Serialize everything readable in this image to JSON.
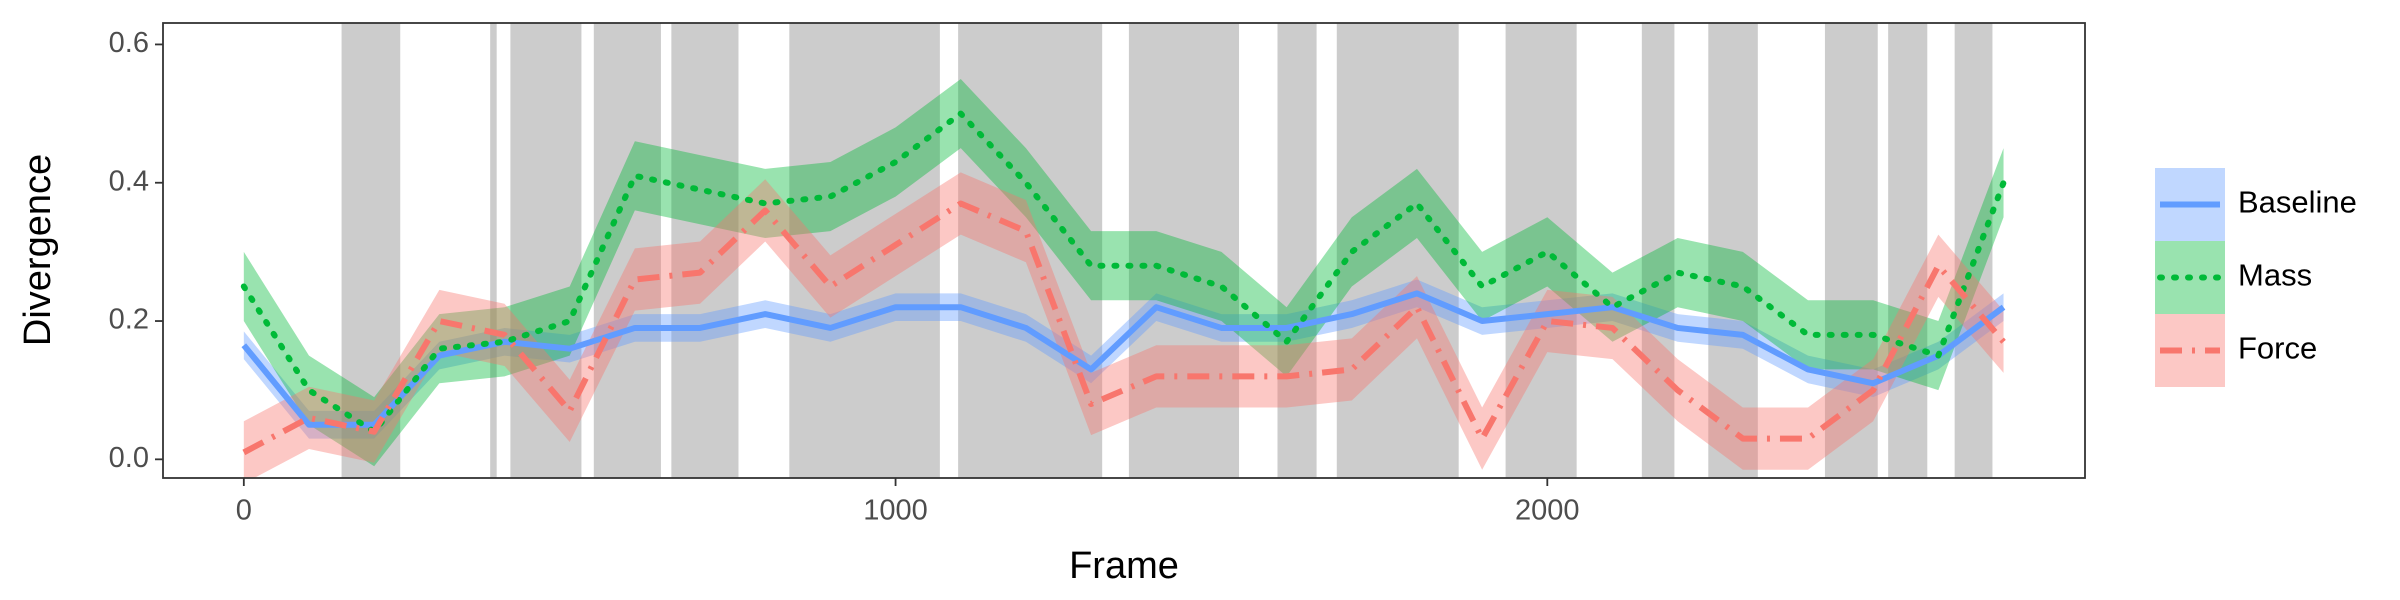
{
  "chart_data": {
    "type": "line",
    "x_label": "Frame",
    "y_label": "Divergence",
    "xlim": [
      -124,
      2825
    ],
    "ylim": [
      -0.027,
      0.631
    ],
    "xticks": [
      0,
      1000,
      2000
    ],
    "yticks": [
      {
        "value": 0,
        "label": "0.0"
      },
      {
        "value": 0.2,
        "label": "0.2"
      },
      {
        "value": 0.4,
        "label": "0.4"
      },
      {
        "value": 0.6,
        "label": "0.6"
      }
    ],
    "grid": false,
    "legend_position": "right",
    "shaded_color": "#cccccc",
    "shaded_regions": [
      [
        150,
        240
      ],
      [
        378,
        388
      ],
      [
        409,
        518
      ],
      [
        537,
        640
      ],
      [
        656,
        759
      ],
      [
        837,
        1068
      ],
      [
        1096,
        1317
      ],
      [
        1358,
        1527
      ],
      [
        1586,
        1646
      ],
      [
        1677,
        1864
      ],
      [
        1936,
        2045
      ],
      [
        2145,
        2195
      ],
      [
        2247,
        2323
      ],
      [
        2426,
        2507
      ],
      [
        2523,
        2583
      ],
      [
        2625,
        2683
      ]
    ],
    "x": [
      0,
      100,
      200,
      300,
      400,
      500,
      600,
      700,
      800,
      900,
      1000,
      1100,
      1200,
      1300,
      1400,
      1500,
      1600,
      1700,
      1800,
      1900,
      2000,
      2100,
      2200,
      2300,
      2400,
      2500,
      2600,
      2700
    ],
    "series": [
      {
        "name": "Baseline",
        "color": "#619CFF",
        "linestyle": "solid",
        "values": [
          0.165,
          0.05,
          0.05,
          0.15,
          0.17,
          0.16,
          0.19,
          0.19,
          0.21,
          0.19,
          0.22,
          0.22,
          0.19,
          0.13,
          0.22,
          0.19,
          0.19,
          0.21,
          0.24,
          0.2,
          0.21,
          0.22,
          0.19,
          0.18,
          0.13,
          0.11,
          0.15,
          0.22
        ],
        "lower": [
          0.145,
          0.03,
          0.03,
          0.13,
          0.15,
          0.14,
          0.17,
          0.17,
          0.19,
          0.17,
          0.2,
          0.2,
          0.17,
          0.11,
          0.2,
          0.17,
          0.17,
          0.19,
          0.22,
          0.18,
          0.19,
          0.2,
          0.17,
          0.16,
          0.11,
          0.09,
          0.13,
          0.2
        ],
        "upper": [
          0.185,
          0.07,
          0.07,
          0.17,
          0.19,
          0.18,
          0.21,
          0.21,
          0.23,
          0.21,
          0.24,
          0.24,
          0.21,
          0.15,
          0.24,
          0.21,
          0.21,
          0.23,
          0.26,
          0.22,
          0.23,
          0.24,
          0.21,
          0.2,
          0.15,
          0.13,
          0.17,
          0.24
        ]
      },
      {
        "name": "Mass",
        "color": "#00BA38",
        "linestyle": "dotted",
        "values": [
          0.25,
          0.1,
          0.04,
          0.16,
          0.17,
          0.2,
          0.41,
          0.39,
          0.37,
          0.38,
          0.43,
          0.5,
          0.4,
          0.28,
          0.28,
          0.25,
          0.17,
          0.3,
          0.37,
          0.25,
          0.3,
          0.22,
          0.27,
          0.25,
          0.18,
          0.18,
          0.15,
          0.4
        ],
        "lower": [
          0.2,
          0.05,
          -0.01,
          0.11,
          0.12,
          0.15,
          0.36,
          0.34,
          0.32,
          0.33,
          0.38,
          0.45,
          0.35,
          0.23,
          0.23,
          0.2,
          0.12,
          0.25,
          0.32,
          0.2,
          0.25,
          0.17,
          0.22,
          0.2,
          0.13,
          0.13,
          0.1,
          0.35
        ],
        "upper": [
          0.3,
          0.15,
          0.09,
          0.21,
          0.22,
          0.25,
          0.46,
          0.44,
          0.42,
          0.43,
          0.48,
          0.55,
          0.45,
          0.33,
          0.33,
          0.3,
          0.22,
          0.35,
          0.42,
          0.3,
          0.35,
          0.27,
          0.32,
          0.3,
          0.23,
          0.23,
          0.2,
          0.45
        ]
      },
      {
        "name": "Force",
        "color": "#F8766D",
        "linestyle": "dashdot",
        "values": [
          0.01,
          0.06,
          0.04,
          0.2,
          0.18,
          0.07,
          0.26,
          0.27,
          0.36,
          0.25,
          0.31,
          0.37,
          0.33,
          0.08,
          0.12,
          0.12,
          0.12,
          0.13,
          0.22,
          0.03,
          0.2,
          0.19,
          0.1,
          0.03,
          0.03,
          0.1,
          0.28,
          0.17
        ],
        "lower": [
          -0.035,
          0.015,
          -0.005,
          0.155,
          0.135,
          0.025,
          0.215,
          0.225,
          0.315,
          0.205,
          0.265,
          0.325,
          0.285,
          0.035,
          0.075,
          0.075,
          0.075,
          0.085,
          0.175,
          -0.015,
          0.155,
          0.145,
          0.055,
          -0.015,
          -0.015,
          0.055,
          0.235,
          0.125
        ],
        "upper": [
          0.055,
          0.105,
          0.085,
          0.245,
          0.225,
          0.115,
          0.305,
          0.315,
          0.405,
          0.295,
          0.355,
          0.415,
          0.375,
          0.125,
          0.165,
          0.165,
          0.165,
          0.175,
          0.265,
          0.075,
          0.245,
          0.235,
          0.145,
          0.075,
          0.075,
          0.145,
          0.325,
          0.215
        ]
      }
    ]
  }
}
